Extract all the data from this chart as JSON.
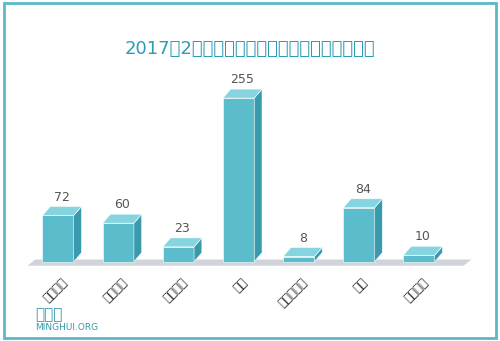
{
  "title": "2017年2月大陆法轮功学员遭各类迫害人数统计",
  "categories": [
    "非法判刑",
    "非法庭审",
    "非法批捕",
    "绑架",
    "关入洗脑班",
    "骚扰",
    "含冤离世"
  ],
  "values": [
    72,
    60,
    23,
    255,
    8,
    84,
    10
  ],
  "bar_color_face": "#5BBCCC",
  "bar_color_side": "#3A9AAD",
  "bar_color_top": "#85D4E0",
  "floor_color": "#C8CDD4",
  "title_color": "#2B9DB5",
  "value_color": "#555555",
  "watermark_cn": "明慧網",
  "watermark_en": "MINGHUI.ORG",
  "watermark_color": "#3399AA",
  "bg_color": "#FFFFFF",
  "border_color": "#5BB8C8",
  "value_fontsize": 9,
  "title_fontsize": 13,
  "tick_fontsize": 8.5
}
